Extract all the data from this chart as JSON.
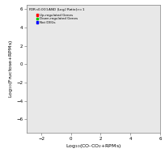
{
  "xlabel": "Log$_{10}$(CO-CO$_2$+RPMs)",
  "ylabel": "Log$_{10}$(Fructose+RPMs)",
  "xlim": [
    -3,
    6
  ],
  "ylim": [
    -7.5,
    6.5
  ],
  "xticks": [
    -2,
    0,
    2,
    4,
    6
  ],
  "yticks": [
    -6,
    -4,
    -2,
    0,
    2,
    4,
    6
  ],
  "legend_title": "FDR<0.001 AND |Log$_2$ Ratio|>=1",
  "legend_labels": [
    "Up-regulated Genes",
    "Down-regulated Genes",
    "Not DEGs"
  ],
  "legend_colors": [
    "#ff0000",
    "#00cc00",
    "#0000ff"
  ],
  "bg_color": "#e8e8e8",
  "seed": 42
}
